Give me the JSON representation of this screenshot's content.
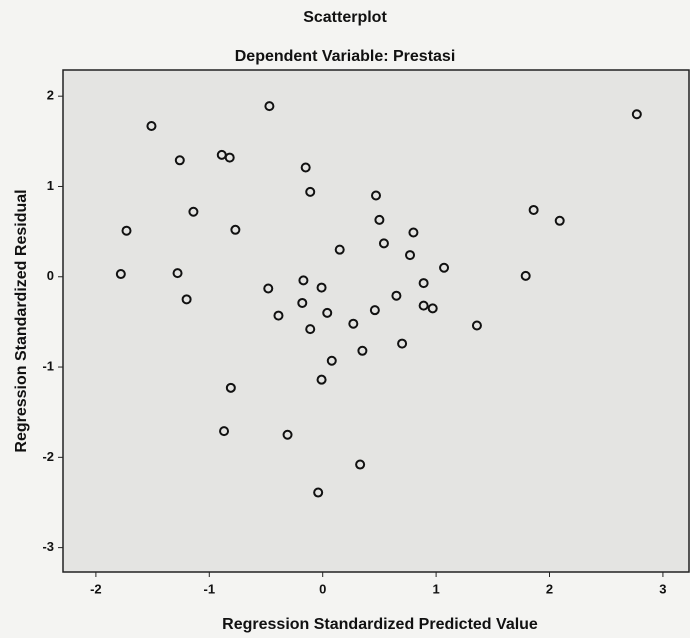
{
  "chart_data": {
    "type": "scatter",
    "title": "Scatterplot",
    "subtitle": "Dependent Variable: Prestasi",
    "x_label": "Regression Standardized Predicted Value",
    "y_label": "Regression Standardized Residual",
    "xlim": [
      -2.29,
      3.23
    ],
    "ylim": [
      -3.27,
      2.29
    ],
    "xticks": [
      -2,
      -1,
      0,
      1,
      2,
      3
    ],
    "yticks": [
      -3,
      -2,
      -1,
      0,
      1,
      2
    ],
    "color": "#111111",
    "x": [
      -1.51,
      -0.47,
      2.77,
      -1.26,
      -0.89,
      -0.82,
      -0.15,
      -0.11,
      0.47,
      -1.14,
      -1.73,
      -0.77,
      0.5,
      1.86,
      2.09,
      0.8,
      0.54,
      0.15,
      0.77,
      1.07,
      -1.78,
      -1.28,
      -0.17,
      0.89,
      1.79,
      -0.48,
      -0.01,
      -1.2,
      0.65,
      -0.18,
      -0.39,
      0.04,
      0.46,
      0.89,
      0.97,
      0.27,
      -0.11,
      1.36,
      0.7,
      0.35,
      0.08,
      -0.01,
      -0.81,
      -0.87,
      -0.31,
      0.33,
      -0.04
    ],
    "values": [
      1.67,
      1.89,
      1.8,
      1.29,
      1.35,
      1.32,
      1.21,
      0.94,
      0.9,
      0.72,
      0.51,
      0.52,
      0.63,
      0.74,
      0.62,
      0.49,
      0.37,
      0.3,
      0.24,
      0.1,
      0.03,
      0.04,
      -0.04,
      -0.07,
      0.01,
      -0.13,
      -0.12,
      -0.25,
      -0.21,
      -0.29,
      -0.43,
      -0.4,
      -0.37,
      -0.32,
      -0.35,
      -0.52,
      -0.58,
      -0.54,
      -0.74,
      -0.82,
      -0.93,
      -1.14,
      -1.23,
      -1.71,
      -1.75,
      -2.08,
      -2.39
    ]
  }
}
